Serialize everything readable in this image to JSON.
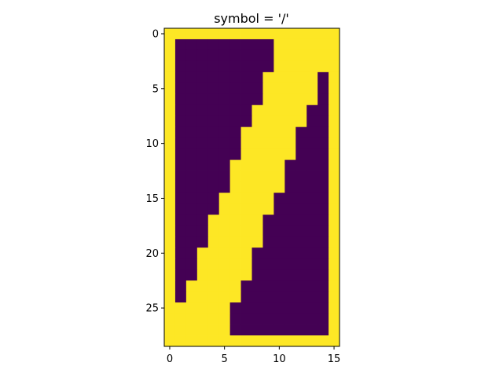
{
  "chart_data": {
    "type": "heatmap",
    "title": "symbol = '/'",
    "xlabel": "",
    "ylabel": "",
    "xlim": [
      -0.5,
      15.5
    ],
    "ylim": [
      28.5,
      -0.5
    ],
    "y_axis_inverted": true,
    "grid": false,
    "legend": "none",
    "colormap": "viridis",
    "colors": {
      "low": "#440154",
      "high": "#fde725"
    },
    "x_ticks": [
      0,
      5,
      10,
      15
    ],
    "y_ticks": [
      0,
      5,
      10,
      15,
      20,
      25
    ],
    "x_tick_labels": [
      "0",
      "5",
      "10",
      "15"
    ],
    "y_tick_labels": [
      "0",
      "5",
      "10",
      "15",
      "20",
      "25"
    ],
    "rows": 29,
    "cols": 16,
    "values": [
      [
        1,
        1,
        1,
        1,
        1,
        1,
        1,
        1,
        1,
        1,
        1,
        1,
        1,
        1,
        1,
        1
      ],
      [
        1,
        0,
        0,
        0,
        0,
        0,
        0,
        0,
        0,
        0,
        1,
        1,
        1,
        1,
        1,
        1
      ],
      [
        1,
        0,
        0,
        0,
        0,
        0,
        0,
        0,
        0,
        0,
        1,
        1,
        1,
        1,
        1,
        1
      ],
      [
        1,
        0,
        0,
        0,
        0,
        0,
        0,
        0,
        0,
        0,
        1,
        1,
        1,
        1,
        1,
        1
      ],
      [
        1,
        0,
        0,
        0,
        0,
        0,
        0,
        0,
        0,
        1,
        1,
        1,
        1,
        1,
        0,
        1
      ],
      [
        1,
        0,
        0,
        0,
        0,
        0,
        0,
        0,
        0,
        1,
        1,
        1,
        1,
        1,
        0,
        1
      ],
      [
        1,
        0,
        0,
        0,
        0,
        0,
        0,
        0,
        0,
        1,
        1,
        1,
        1,
        1,
        0,
        1
      ],
      [
        1,
        0,
        0,
        0,
        0,
        0,
        0,
        0,
        1,
        1,
        1,
        1,
        1,
        0,
        0,
        1
      ],
      [
        1,
        0,
        0,
        0,
        0,
        0,
        0,
        0,
        1,
        1,
        1,
        1,
        1,
        0,
        0,
        1
      ],
      [
        1,
        0,
        0,
        0,
        0,
        0,
        0,
        1,
        1,
        1,
        1,
        1,
        0,
        0,
        0,
        1
      ],
      [
        1,
        0,
        0,
        0,
        0,
        0,
        0,
        1,
        1,
        1,
        1,
        1,
        0,
        0,
        0,
        1
      ],
      [
        1,
        0,
        0,
        0,
        0,
        0,
        0,
        1,
        1,
        1,
        1,
        1,
        0,
        0,
        0,
        1
      ],
      [
        1,
        0,
        0,
        0,
        0,
        0,
        1,
        1,
        1,
        1,
        1,
        0,
        0,
        0,
        0,
        1
      ],
      [
        1,
        0,
        0,
        0,
        0,
        0,
        1,
        1,
        1,
        1,
        1,
        0,
        0,
        0,
        0,
        1
      ],
      [
        1,
        0,
        0,
        0,
        0,
        0,
        1,
        1,
        1,
        1,
        1,
        0,
        0,
        0,
        0,
        1
      ],
      [
        1,
        0,
        0,
        0,
        0,
        1,
        1,
        1,
        1,
        1,
        0,
        0,
        0,
        0,
        0,
        1
      ],
      [
        1,
        0,
        0,
        0,
        0,
        1,
        1,
        1,
        1,
        1,
        0,
        0,
        0,
        0,
        0,
        1
      ],
      [
        1,
        0,
        0,
        0,
        1,
        1,
        1,
        1,
        1,
        0,
        0,
        0,
        0,
        0,
        0,
        1
      ],
      [
        1,
        0,
        0,
        0,
        1,
        1,
        1,
        1,
        1,
        0,
        0,
        0,
        0,
        0,
        0,
        1
      ],
      [
        1,
        0,
        0,
        0,
        1,
        1,
        1,
        1,
        1,
        0,
        0,
        0,
        0,
        0,
        0,
        1
      ],
      [
        1,
        0,
        0,
        1,
        1,
        1,
        1,
        1,
        0,
        0,
        0,
        0,
        0,
        0,
        0,
        1
      ],
      [
        1,
        0,
        0,
        1,
        1,
        1,
        1,
        1,
        0,
        0,
        0,
        0,
        0,
        0,
        0,
        1
      ],
      [
        1,
        0,
        0,
        1,
        1,
        1,
        1,
        1,
        0,
        0,
        0,
        0,
        0,
        0,
        0,
        1
      ],
      [
        1,
        0,
        1,
        1,
        1,
        1,
        1,
        0,
        0,
        0,
        0,
        0,
        0,
        0,
        0,
        1
      ],
      [
        1,
        0,
        1,
        1,
        1,
        1,
        1,
        0,
        0,
        0,
        0,
        0,
        0,
        0,
        0,
        1
      ],
      [
        1,
        1,
        1,
        1,
        1,
        1,
        0,
        0,
        0,
        0,
        0,
        0,
        0,
        0,
        0,
        1
      ],
      [
        1,
        1,
        1,
        1,
        1,
        1,
        0,
        0,
        0,
        0,
        0,
        0,
        0,
        0,
        0,
        1
      ],
      [
        1,
        1,
        1,
        1,
        1,
        1,
        0,
        0,
        0,
        0,
        0,
        0,
        0,
        0,
        0,
        1
      ],
      [
        1,
        1,
        1,
        1,
        1,
        1,
        1,
        1,
        1,
        1,
        1,
        1,
        1,
        1,
        1,
        1
      ]
    ]
  }
}
